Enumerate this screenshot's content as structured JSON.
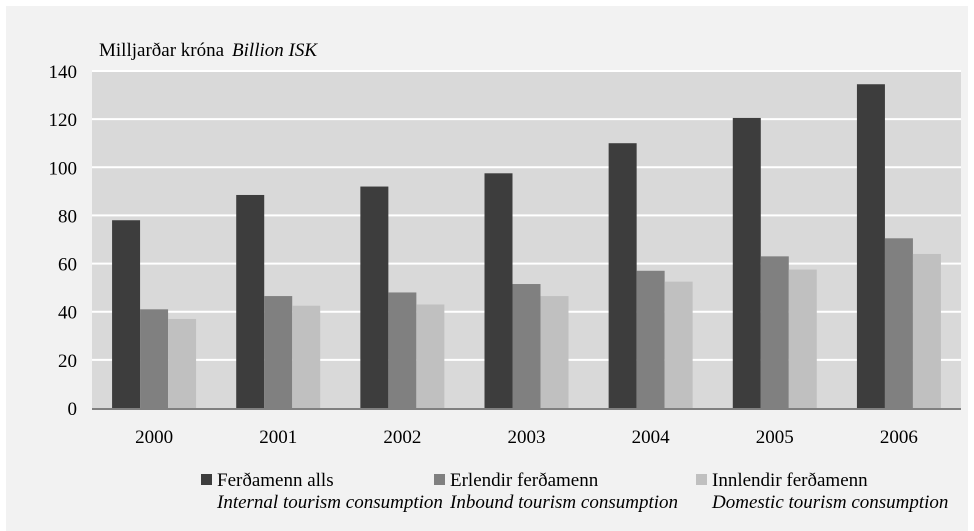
{
  "chart_data": {
    "type": "bar",
    "unit_label": "Milljarðar króna",
    "unit_label_en": "Billion ISK",
    "categories": [
      "2000",
      "2001",
      "2002",
      "2003",
      "2004",
      "2005",
      "2006"
    ],
    "ylim": [
      0,
      140
    ],
    "yticks": [
      "0",
      "20",
      "40",
      "60",
      "80",
      "100",
      "120",
      "140"
    ],
    "grid": true,
    "legend_position": "bottom",
    "series": [
      {
        "name": "Ferðamenn alls",
        "name_en": "Internal tourism consumption",
        "color": "#3d3d3d",
        "values": [
          78,
          88.5,
          92,
          97.5,
          110,
          120.5,
          134.5
        ]
      },
      {
        "name": "Erlendir ferðamenn",
        "name_en": "Inbound tourism consumption",
        "color": "#808080",
        "values": [
          41,
          46.5,
          48,
          51.5,
          57,
          63,
          70.5
        ]
      },
      {
        "name": "Innlendir ferðamenn",
        "name_en": "Domestic tourism consumption",
        "color": "#c0c0c0",
        "values": [
          37,
          42.5,
          43,
          46.5,
          52.5,
          57.5,
          64
        ]
      }
    ]
  }
}
